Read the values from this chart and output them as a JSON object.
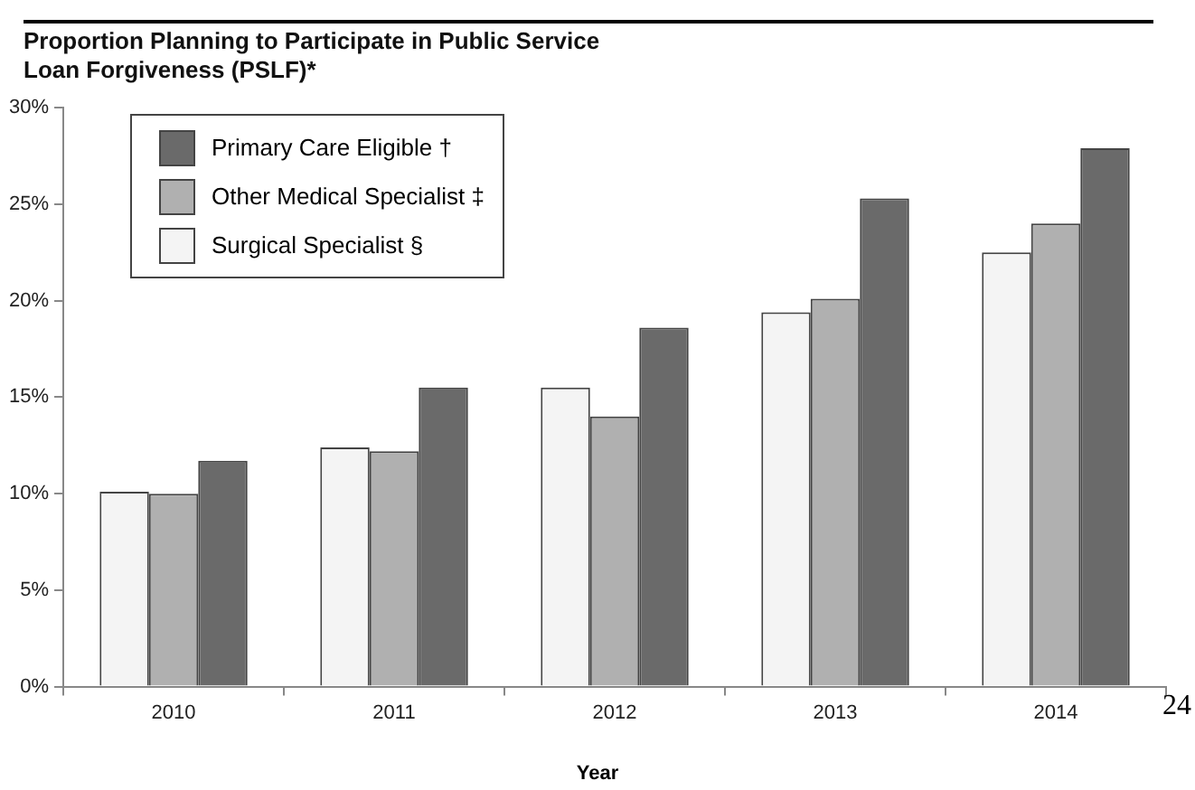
{
  "chart_data": {
    "type": "bar",
    "title": "Proportion Planning to Participate in Public Service\nLoan Forgiveness (PSLF)*",
    "xlabel": "Year",
    "categories": [
      "2010",
      "2011",
      "2012",
      "2013",
      "2014"
    ],
    "series": [
      {
        "name": "Surgical Specialist §",
        "color": "#f4f4f4",
        "values": [
          10.1,
          12.4,
          15.5,
          19.4,
          22.5
        ]
      },
      {
        "name": "Other Medical Specialist ‡",
        "color": "#b0b0b0",
        "values": [
          10.0,
          12.2,
          14.0,
          20.1,
          24.0
        ]
      },
      {
        "name": "Primary Care Eligible †",
        "color": "#6a6a6a",
        "values": [
          11.7,
          15.5,
          18.6,
          25.3,
          27.9
        ]
      }
    ],
    "ylim": [
      0,
      30
    ],
    "yticks": [
      {
        "value": 0,
        "label": "0%"
      },
      {
        "value": 5,
        "label": "5%"
      },
      {
        "value": 10,
        "label": "10%"
      },
      {
        "value": 15,
        "label": "15%"
      },
      {
        "value": 20,
        "label": "20%"
      },
      {
        "value": 25,
        "label": "25%"
      },
      {
        "value": 30,
        "label": "30%"
      }
    ],
    "grid": false,
    "legend": "top left",
    "annotations": [
      "24"
    ]
  }
}
